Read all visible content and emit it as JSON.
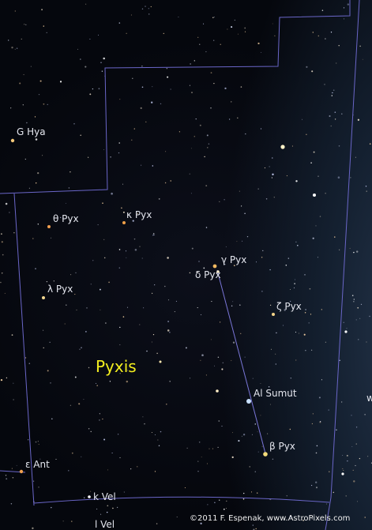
{
  "constellation_name": "Pyxis",
  "credit": "©2011 F. Espenak, www.AstroPixels.com",
  "colors": {
    "boundary": "#6a66c8",
    "stick": "#7a76d8",
    "label": "#e4e6ee",
    "constellation_name": "#f3ee1e"
  },
  "labels": {
    "g_hya": "G Hya",
    "theta_pyx": "θ Pyx",
    "kappa_pyx": "κ Pyx",
    "gamma_pyx": "γ Pyx",
    "delta_pyx": "δ Pyx",
    "lambda_pyx": "λ Pyx",
    "zeta_pyx": "ζ Pyx",
    "al_sumut": "Al Sumut",
    "beta_pyx": "β Pyx",
    "epsilon_ant": "ε Ant",
    "k_vel": "k Vel",
    "l_vel": "l Vel",
    "w_partial": "w"
  }
}
